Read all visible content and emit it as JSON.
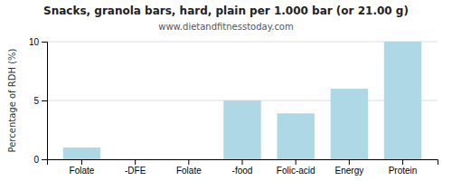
{
  "chart_data": {
    "type": "bar",
    "title": "Snacks, granola bars, hard, plain per 1.000 bar (or 21.00 g)",
    "subtitle": "www.dietandfitnesstoday.com",
    "ylabel": "Percentage of RDH (%)",
    "categories": [
      "Folate",
      "-DFE",
      "Folate",
      "-food",
      "Folic-acid",
      "Energy",
      "Protein"
    ],
    "values": [
      1.0,
      0.0,
      0.0,
      5.0,
      3.9,
      6.0,
      10.0
    ],
    "color": "#aed8e6",
    "ylim": [
      0,
      10
    ],
    "yticks": [
      0,
      5,
      10
    ],
    "grid": true
  }
}
